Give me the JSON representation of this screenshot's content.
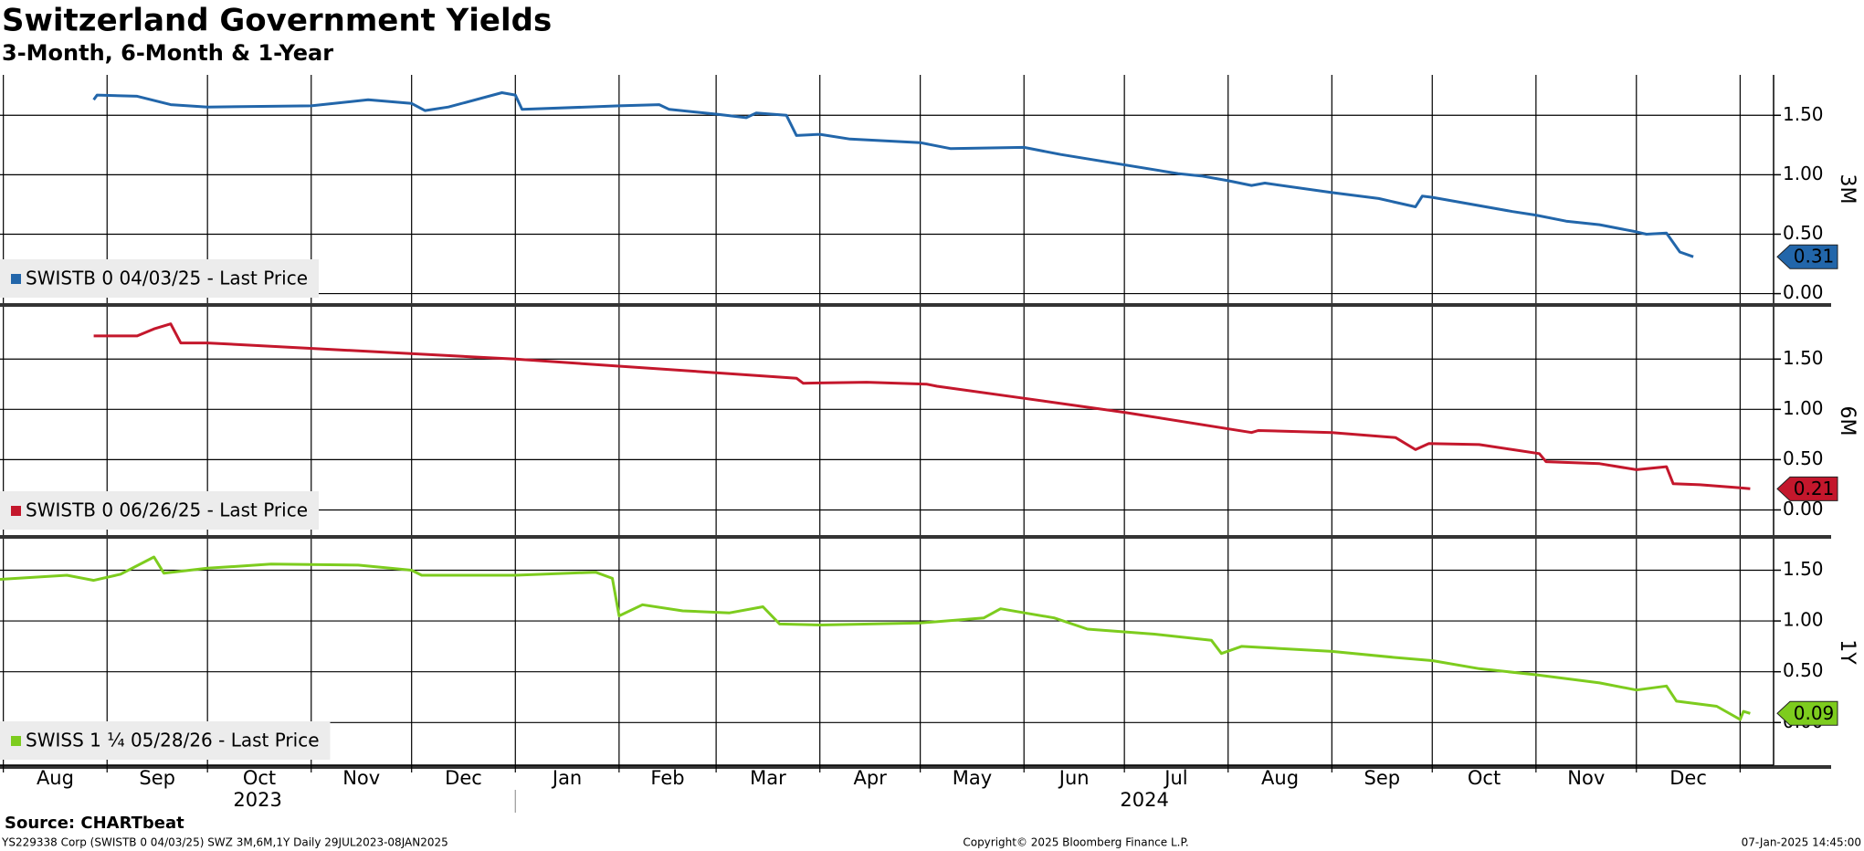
{
  "chart_data": [
    {
      "type": "line",
      "title": "Switzerland Government Yields",
      "subtitle": "3-Month, 6-Month & 1-Year",
      "ylabel": "3M",
      "ylim": [
        -0.08,
        1.84
      ],
      "yticks": [
        {
          "value": 0,
          "label": "0.00"
        },
        {
          "value": 0.5,
          "label": "0.50"
        },
        {
          "value": 1,
          "label": "1.00"
        },
        {
          "value": 1.5,
          "label": "1.50"
        }
      ],
      "grid": true,
      "legend": "lower left",
      "x": [
        "2023-08-28",
        "2023-08-29",
        "2023-09-10",
        "2023-09-20",
        "2023-10-01",
        "2023-11-01",
        "2023-11-18",
        "2023-12-01",
        "2023-12-05",
        "2023-12-12",
        "2023-12-28",
        "2024-01-01",
        "2024-01-03",
        "2024-02-01",
        "2024-02-13",
        "2024-02-16",
        "2024-03-01",
        "2024-03-10",
        "2024-03-13",
        "2024-03-22",
        "2024-03-25",
        "2024-04-01",
        "2024-04-10",
        "2024-05-01",
        "2024-05-10",
        "2024-06-01",
        "2024-06-12",
        "2024-07-17",
        "2024-07-24",
        "2024-08-01",
        "2024-08-08",
        "2024-08-12",
        "2024-09-01",
        "2024-09-15",
        "2024-09-26",
        "2024-09-28",
        "2024-10-01",
        "2024-10-25",
        "2024-11-01",
        "2024-11-10",
        "2024-11-20",
        "2024-12-01",
        "2024-12-04",
        "2024-12-10",
        "2024-12-14",
        "2024-12-18"
      ],
      "series": [
        {
          "name": "SWISTB 0 04/03/25 - Last Price",
          "color": "#2266aa",
          "values": [
            1.63,
            1.67,
            1.66,
            1.59,
            1.57,
            1.58,
            1.63,
            1.6,
            1.54,
            1.57,
            1.69,
            1.67,
            1.55,
            1.58,
            1.59,
            1.55,
            1.51,
            1.48,
            1.52,
            1.5,
            1.33,
            1.34,
            1.3,
            1.27,
            1.22,
            1.23,
            1.17,
            1.01,
            0.99,
            0.95,
            0.91,
            0.93,
            0.85,
            0.8,
            0.73,
            0.82,
            0.81,
            0.69,
            0.66,
            0.61,
            0.58,
            0.52,
            0.5,
            0.51,
            0.35,
            0.31
          ]
        }
      ]
    },
    {
      "type": "line",
      "ylabel": "6M",
      "ylim": [
        -0.25,
        2.02
      ],
      "yticks": [
        {
          "value": 0,
          "label": "0.00"
        },
        {
          "value": 0.5,
          "label": "0.50"
        },
        {
          "value": 1,
          "label": "1.00"
        },
        {
          "value": 1.5,
          "label": "1.50"
        }
      ],
      "grid": true,
      "legend": "lower left",
      "x": [
        "2023-08-28",
        "2023-09-10",
        "2023-09-15",
        "2023-09-20",
        "2023-09-23",
        "2023-10-01",
        "2024-01-01",
        "2024-03-25",
        "2024-03-27",
        "2024-04-15",
        "2024-05-03",
        "2024-05-06",
        "2024-06-01",
        "2024-07-01",
        "2024-08-08",
        "2024-08-10",
        "2024-09-01",
        "2024-09-20",
        "2024-09-26",
        "2024-09-30",
        "2024-10-15",
        "2024-10-25",
        "2024-11-02",
        "2024-11-04",
        "2024-11-20",
        "2024-12-01",
        "2024-12-10",
        "2024-12-12",
        "2024-12-20",
        "2025-01-01",
        "2025-01-04"
      ],
      "series": [
        {
          "name": "SWISTB 0 06/26/25 - Last Price",
          "color": "#c4172c",
          "values": [
            1.73,
            1.73,
            1.8,
            1.85,
            1.66,
            1.66,
            1.5,
            1.31,
            1.26,
            1.27,
            1.25,
            1.23,
            1.11,
            0.97,
            0.77,
            0.79,
            0.77,
            0.72,
            0.6,
            0.66,
            0.65,
            0.6,
            0.56,
            0.48,
            0.46,
            0.4,
            0.43,
            0.26,
            0.25,
            0.22,
            0.21
          ]
        }
      ]
    },
    {
      "type": "line",
      "ylabel": "1Y",
      "ylim": [
        -0.42,
        1.81
      ],
      "yticks": [
        {
          "value": 0,
          "label": "0.00"
        },
        {
          "value": 0.5,
          "label": "0.50"
        },
        {
          "value": 1,
          "label": "1.00"
        },
        {
          "value": 1.5,
          "label": "1.50"
        }
      ],
      "grid": true,
      "legend": "lower left",
      "xlim": [
        "2023-07-31",
        "2025-01-11"
      ],
      "xticks": [
        {
          "value": "2023-08-01",
          "label": "Aug"
        },
        {
          "value": "2023-09-01",
          "label": "Sep"
        },
        {
          "value": "2023-10-01",
          "label": "Oct"
        },
        {
          "value": "2023-11-01",
          "label": "Nov"
        },
        {
          "value": "2023-12-01",
          "label": "Dec"
        },
        {
          "value": "2024-01-01",
          "label": "Jan"
        },
        {
          "value": "2024-02-01",
          "label": "Feb"
        },
        {
          "value": "2024-03-01",
          "label": "Mar"
        },
        {
          "value": "2024-04-01",
          "label": "Apr"
        },
        {
          "value": "2024-05-01",
          "label": "May"
        },
        {
          "value": "2024-06-01",
          "label": "Jun"
        },
        {
          "value": "2024-07-01",
          "label": "Jul"
        },
        {
          "value": "2024-08-01",
          "label": "Aug"
        },
        {
          "value": "2024-09-01",
          "label": "Sep"
        },
        {
          "value": "2024-10-01",
          "label": "Oct"
        },
        {
          "value": "2024-11-01",
          "label": "Nov"
        },
        {
          "value": "2024-12-01",
          "label": "Dec"
        },
        {
          "value": "2025-01-01",
          "label": null
        }
      ],
      "years": [
        {
          "value": "2023-07-31",
          "label": "2023"
        },
        {
          "value": "2024-01-01",
          "label": "2024"
        }
      ],
      "x": [
        "2023-07-31",
        "2023-08-20",
        "2023-08-28",
        "2023-09-05",
        "2023-09-15",
        "2023-09-18",
        "2023-10-01",
        "2023-10-20",
        "2023-11-15",
        "2023-12-01",
        "2023-12-04",
        "2024-01-01",
        "2024-01-25",
        "2024-01-30",
        "2024-02-01",
        "2024-02-08",
        "2024-02-20",
        "2024-03-05",
        "2024-03-15",
        "2024-03-20",
        "2024-04-01",
        "2024-05-01",
        "2024-05-20",
        "2024-05-25",
        "2024-06-10",
        "2024-06-20",
        "2024-07-10",
        "2024-07-27",
        "2024-07-30",
        "2024-08-05",
        "2024-09-01",
        "2024-09-20",
        "2024-10-01",
        "2024-10-15",
        "2024-11-01",
        "2024-11-20",
        "2024-12-01",
        "2024-12-10",
        "2024-12-13",
        "2024-12-25",
        "2025-01-01",
        "2025-01-02",
        "2025-01-04"
      ],
      "series": [
        {
          "name": "SWISS 1 ¼ 05/28/26 - Last Price",
          "color": "#7dcc1e",
          "values": [
            1.41,
            1.45,
            1.4,
            1.46,
            1.63,
            1.47,
            1.52,
            1.56,
            1.55,
            1.5,
            1.45,
            1.45,
            1.48,
            1.42,
            1.05,
            1.16,
            1.1,
            1.08,
            1.14,
            0.97,
            0.96,
            0.98,
            1.03,
            1.12,
            1.03,
            0.92,
            0.87,
            0.81,
            0.68,
            0.75,
            0.7,
            0.64,
            0.61,
            0.53,
            0.47,
            0.39,
            0.32,
            0.36,
            0.21,
            0.16,
            0.03,
            0.11,
            0.09
          ]
        }
      ]
    }
  ],
  "footer": {
    "source": "Source: CHARTbeat",
    "left": "YS229338 Corp (SWISTB 0 04/03/25) SWZ 3M,6M,1Y  Daily 29JUL2023-08JAN2025",
    "center": "Copyright© 2025 Bloomberg Finance L.P.",
    "right": "07-Jan-2025 14:45:00"
  }
}
